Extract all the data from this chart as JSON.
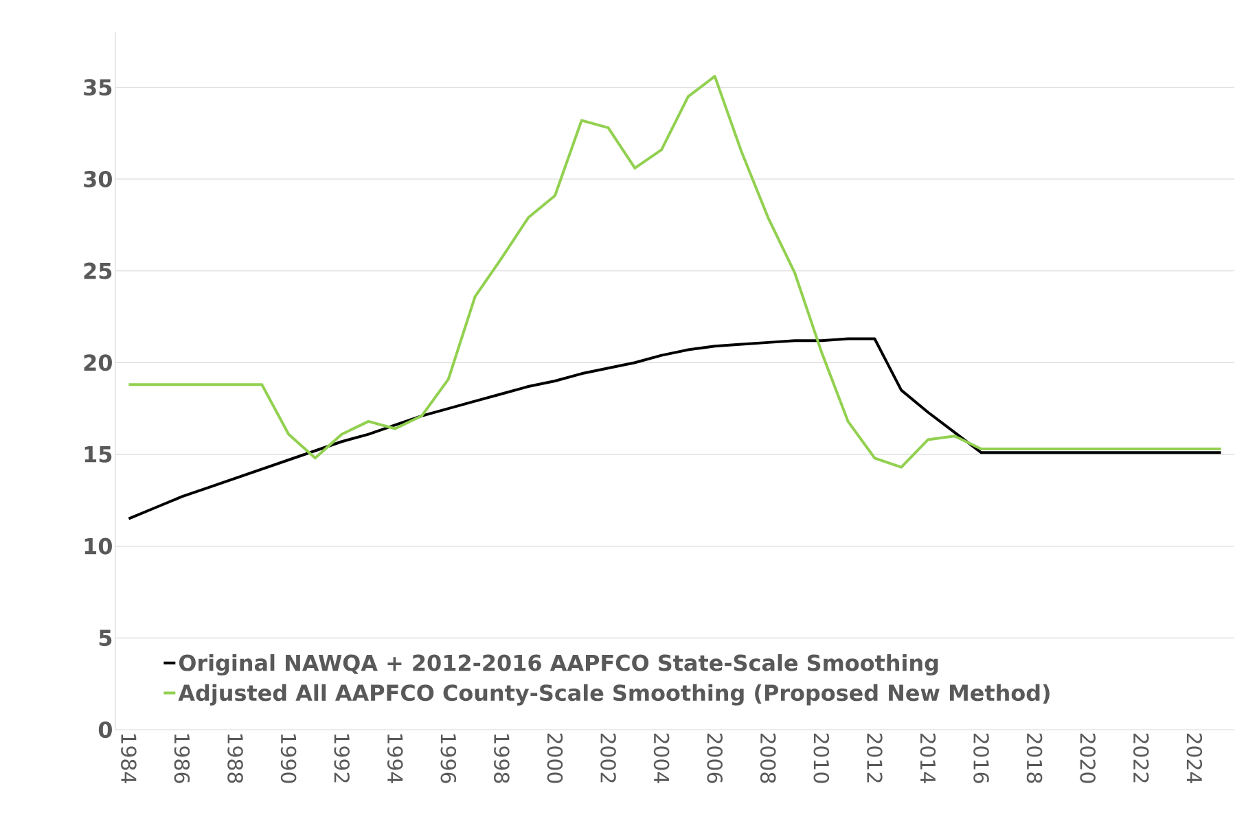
{
  "chart_data": {
    "type": "line",
    "categories": [
      "1984",
      null,
      "1986",
      null,
      "1988",
      null,
      "1990",
      null,
      "1992",
      null,
      "1994",
      null,
      "1996",
      null,
      "1998",
      null,
      "2000",
      null,
      "2002",
      null,
      "2004",
      null,
      "2006",
      null,
      "2008",
      null,
      "2010",
      null,
      "2012",
      null,
      "2014",
      null,
      "2016",
      null,
      "2018",
      null,
      "2020",
      null,
      "2022",
      null,
      "2024",
      null
    ],
    "series": [
      {
        "name": "Original NAWQA + 2012-2016 AAPFCO State-Scale Smoothing",
        "color": "#000000",
        "values": [
          11.5,
          12.1,
          12.7,
          13.2,
          13.7,
          14.2,
          14.7,
          15.2,
          15.7,
          16.1,
          16.6,
          17.1,
          17.5,
          17.9,
          18.3,
          18.7,
          19.0,
          19.4,
          19.7,
          20.0,
          20.4,
          20.7,
          20.9,
          21.0,
          21.1,
          21.2,
          21.2,
          21.3,
          21.3,
          18.5,
          17.3,
          16.2,
          15.1,
          15.1,
          15.1,
          15.1,
          15.1,
          15.1,
          15.1,
          15.1,
          15.1,
          15.1
        ]
      },
      {
        "name": "Adjusted All AAPFCO County-Scale Smoothing (Proposed New Method)",
        "color": "#92d050",
        "values": [
          18.8,
          18.8,
          18.8,
          18.8,
          18.8,
          18.8,
          16.1,
          14.8,
          16.1,
          16.8,
          16.4,
          17.1,
          19.1,
          23.6,
          25.7,
          27.9,
          29.1,
          33.2,
          32.8,
          30.6,
          31.6,
          34.5,
          35.6,
          31.5,
          27.9,
          24.9,
          20.6,
          16.8,
          14.8,
          14.3,
          15.8,
          16.0,
          15.3,
          15.3,
          15.3,
          15.3,
          15.3,
          15.3,
          15.3,
          15.3,
          15.3,
          15.3
        ]
      }
    ],
    "ylim": [
      0,
      38
    ],
    "yticks": [
      0,
      5,
      10,
      15,
      20,
      25,
      30,
      35
    ],
    "grid": "y",
    "legend": "bottom",
    "marker": "none",
    "line_style": "solid"
  }
}
